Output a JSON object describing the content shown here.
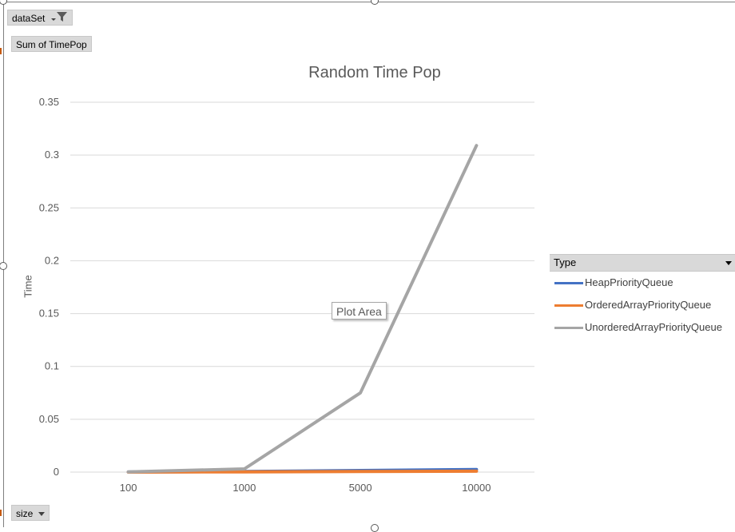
{
  "filter_button": {
    "label": "dataSet",
    "icon": "filter-icon"
  },
  "value_button": {
    "label": "Sum of TimePop"
  },
  "axis_button": {
    "label": "size",
    "icon": "chevron-down-icon"
  },
  "legend": {
    "header": "Type",
    "items": [
      "HeapPriorityQueue",
      "OrderedArrayPriorityQueue",
      "UnorderedArrayPriorityQueue"
    ]
  },
  "tooltip": {
    "text": "Plot Area"
  },
  "colors": {
    "HeapPriorityQueue": "#4472c4",
    "OrderedArrayPriorityQueue": "#ed7d31",
    "UnorderedArrayPriorityQueue": "#a5a5a5",
    "gridline": "#d9d9d9"
  },
  "chart_data": {
    "type": "line",
    "title": "Random Time Pop",
    "xlabel": "",
    "ylabel": "Time",
    "categories": [
      "100",
      "1000",
      "5000",
      "10000"
    ],
    "y_ticks": [
      "0",
      "0.05",
      "0.1",
      "0.15",
      "0.2",
      "0.25",
      "0.3",
      "0.35"
    ],
    "ylim": [
      0,
      0.35
    ],
    "grid": true,
    "legend_position": "right",
    "series": [
      {
        "name": "HeapPriorityQueue",
        "values": [
          0.0001,
          0.0005,
          0.0015,
          0.0025
        ]
      },
      {
        "name": "OrderedArrayPriorityQueue",
        "values": [
          0.0,
          0.0002,
          0.0005,
          0.0008
        ]
      },
      {
        "name": "UnorderedArrayPriorityQueue",
        "values": [
          0.0002,
          0.003,
          0.075,
          0.309
        ]
      }
    ]
  }
}
